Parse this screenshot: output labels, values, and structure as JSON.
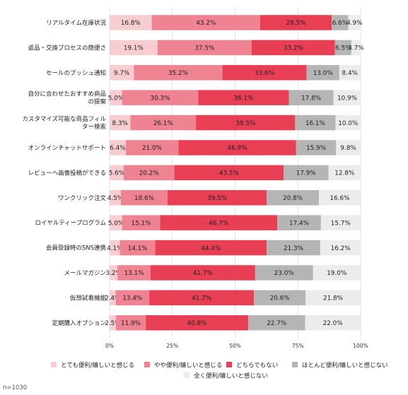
{
  "chart_data": {
    "type": "bar",
    "orientation": "horizontal",
    "stacked": true,
    "categories": [
      "リアルタイム在庫状況",
      "返品・交換プロセスの簡便さ",
      "セールのプッシュ通知",
      "自分に合わせたおすすめ商品の提案",
      "カスタマイズ可能な商品フィルター検索",
      "オンラインチャットサポート",
      "レビューへ画像投稿ができる",
      "ワンクリック注文",
      "ロイヤルティープログラム",
      "会員登録時のSNS連携",
      "メールマガジン",
      "仮想試着機能",
      "定期購入オプション"
    ],
    "category_lines": [
      [
        "リアルタイム在庫状況"
      ],
      [
        "返品・交換プロセスの簡便さ"
      ],
      [
        "セールのプッシュ通知"
      ],
      [
        "自分に合わせたおすすめ商品",
        "の提案"
      ],
      [
        "カスタマイズ可能な商品フィル",
        "ター検索"
      ],
      [
        "オンラインチャットサポート"
      ],
      [
        "レビューへ画像投稿ができる"
      ],
      [
        "ワンクリック注文"
      ],
      [
        "ロイヤルティープログラム"
      ],
      [
        "会員登録時のSNS連携"
      ],
      [
        "メールマガジン"
      ],
      [
        "仮想試着機能"
      ],
      [
        "定期購入オプション"
      ]
    ],
    "series": [
      {
        "name": "とても便利/嬉しいと感じる",
        "color": "#f7cdd2",
        "values": [
          16.8,
          19.1,
          9.7,
          5.0,
          8.3,
          6.4,
          5.6,
          4.5,
          5.0,
          4.1,
          3.2,
          2.4,
          2.5
        ],
        "labels": [
          "16.8%",
          "19.1%",
          "9.7%",
          "5.0%",
          "8.3%",
          "6.4%",
          "5.6%",
          "4.5%",
          "5.0%",
          "4.1%",
          "3.2%",
          "2.4%",
          "2.5%"
        ]
      },
      {
        "name": "やや便利/嬉しいと感じる",
        "color": "#f08391",
        "values": [
          43.2,
          37.5,
          35.2,
          30.3,
          26.1,
          21.0,
          20.2,
          18.6,
          15.1,
          14.1,
          13.1,
          13.4,
          11.9
        ],
        "labels": [
          "43.2%",
          "37.5%",
          "35.2%",
          "30.3%",
          "26.1%",
          "21.0%",
          "20.2%",
          "18.6%",
          "15.1%",
          "14.1%",
          "13.1%",
          "13.4%",
          "11.9%"
        ]
      },
      {
        "name": "どちらでもない",
        "color": "#e83f55",
        "values": [
          28.5,
          33.2,
          33.6,
          36.1,
          39.5,
          46.9,
          43.5,
          39.5,
          46.7,
          44.4,
          41.7,
          41.7,
          40.8
        ],
        "labels": [
          "28.5%",
          "33.2%",
          "33.6%",
          "36.1%",
          "39.5%",
          "46.9%",
          "43.5%",
          "39.5%",
          "46.7%",
          "44.4%",
          "41.7%",
          "41.7%",
          "40.8%"
        ]
      },
      {
        "name": "ほとんど便利/嬉しいと感じない",
        "color": "#b5b5b5",
        "values": [
          6.6,
          6.5,
          13.0,
          17.8,
          16.1,
          15.9,
          17.9,
          20.8,
          17.4,
          21.3,
          23.0,
          20.6,
          22.7
        ],
        "labels": [
          "6.6%",
          "6.5%",
          "13.0%",
          "17.8%",
          "16.1%",
          "15.9%",
          "17.9%",
          "20.8%",
          "17.4%",
          "21.3%",
          "23.0%",
          "20.6%",
          "22.7%"
        ]
      },
      {
        "name": "全く便利/嬉しいと感じない",
        "color": "#ececec",
        "values": [
          4.9,
          3.7,
          8.4,
          10.9,
          10.0,
          9.8,
          12.8,
          16.6,
          15.7,
          16.2,
          19.0,
          21.8,
          22.0
        ],
        "labels": [
          "4.9%",
          "3.7%",
          "8.4%",
          "10.9%",
          "10.0%",
          "9.8%",
          "12.8%",
          "16.6%",
          "15.7%",
          "16.2%",
          "19.0%",
          "21.8%",
          "22.0%"
        ]
      }
    ],
    "x_ticks": [
      "0%",
      "25%",
      "50%",
      "75%",
      "100%"
    ],
    "xlim": [
      0,
      100
    ],
    "grid": true,
    "legend_position": "bottom"
  },
  "footnote": "n=1030"
}
